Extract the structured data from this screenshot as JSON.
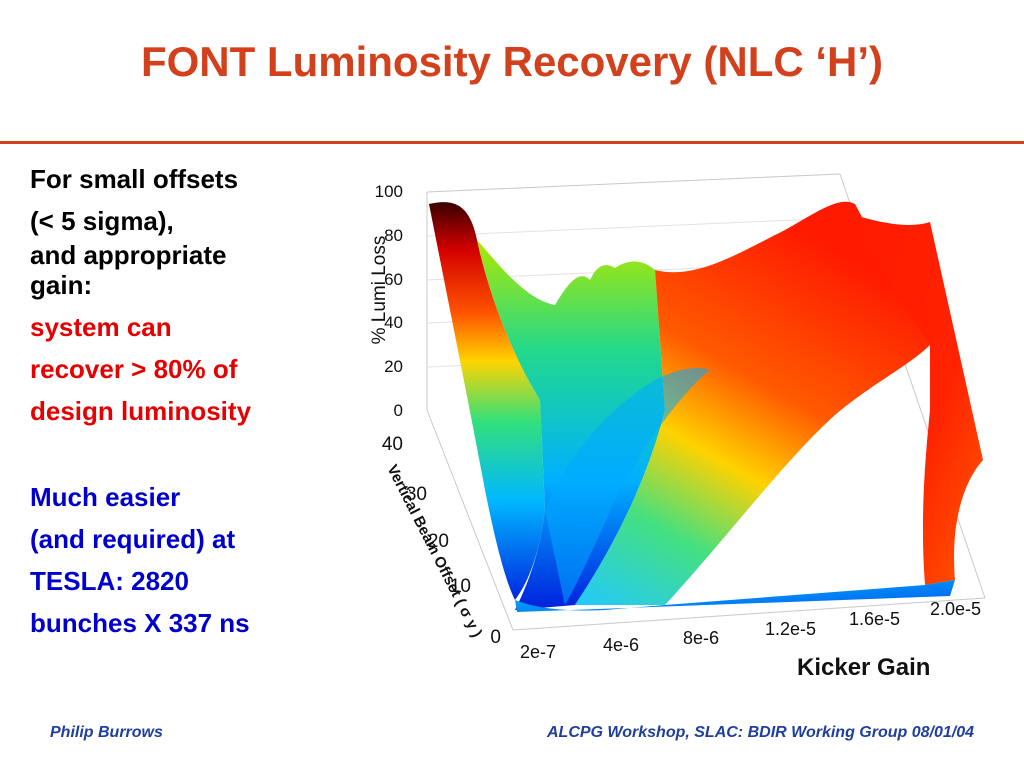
{
  "slide": {
    "title": "FONT Luminosity Recovery (NLC ‘H’)",
    "title_color": "#d2401c"
  },
  "text": {
    "lines_black": [
      "For small offsets",
      "(< 5 sigma),",
      "and appropriate",
      "gain:"
    ],
    "lines_red": [
      "system can",
      "recover > 80% of",
      "design luminosity"
    ],
    "lines_blue": [
      "Much easier",
      "(and required) at",
      "TESLA: 2820",
      "bunches X 337 ns"
    ]
  },
  "chart_data": {
    "type": "surface",
    "zlabel": "% Lumi Loss",
    "ylabel": "Vertical Beam Offset ( σ y )",
    "xlabel": "Kicker Gain",
    "z_ticks": [
      "100",
      "80",
      "60",
      "40",
      "20",
      "0"
    ],
    "y_ticks": [
      "40",
      "30",
      "20",
      "10",
      "0"
    ],
    "x_ticks": [
      "2e-7",
      "4e-6",
      "8e-6",
      "1.2e-5",
      "1.6e-5",
      "2.0e-5"
    ],
    "zlim": [
      0,
      100
    ],
    "ylim": [
      0,
      40
    ],
    "xlim": [
      2e-07,
      2e-05
    ],
    "colormap": [
      "#0022dd",
      "#00bfff",
      "#00e08a",
      "#c8ec00",
      "#ffb000",
      "#ff2a00",
      "#4a0000"
    ]
  },
  "footer": {
    "left": "Philip Burrows",
    "right": "ALCPG Workshop, SLAC: BDIR Working Group 08/01/04"
  }
}
